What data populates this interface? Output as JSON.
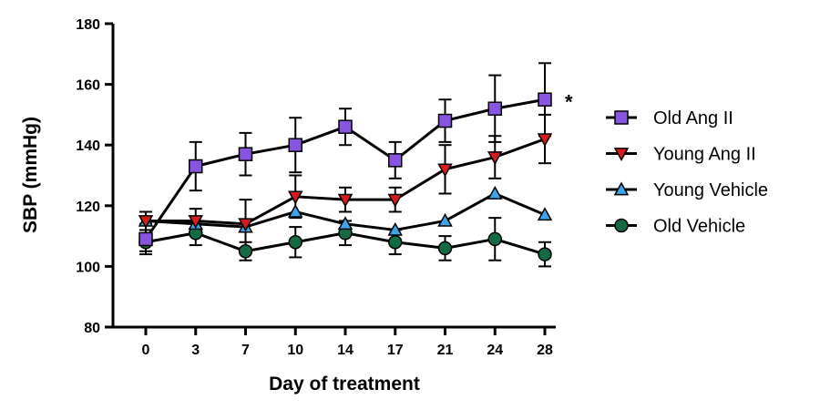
{
  "chart_data": {
    "type": "line",
    "title": "",
    "xlabel": "Day of treatment",
    "ylabel": "SBP (mmHg)",
    "categories": [
      "0",
      "3",
      "7",
      "10",
      "14",
      "17",
      "21",
      "24",
      "28"
    ],
    "ylim": [
      80,
      180
    ],
    "yticks": [
      80,
      100,
      120,
      140,
      160,
      180
    ],
    "ytick_labels": [
      "80",
      "100",
      "120",
      "140",
      "160",
      "180"
    ],
    "legend_position": "right",
    "series": [
      {
        "name": "Old Ang II",
        "marker": "square",
        "color": "#8855e0",
        "values": [
          109,
          133,
          137,
          140,
          146,
          135,
          148,
          152,
          155
        ],
        "errors": [
          5,
          8,
          7,
          9,
          6,
          6,
          7,
          11,
          12
        ]
      },
      {
        "name": "Young Ang II",
        "marker": "triangle-down",
        "color": "#d61c1c",
        "values": [
          115,
          115,
          114,
          123,
          122,
          122,
          132,
          136,
          142
        ],
        "errors": [
          3,
          4,
          8,
          7,
          4,
          4,
          8,
          7,
          8
        ]
      },
      {
        "name": "Young Vehicle",
        "marker": "triangle-up",
        "color": "#3fa4e8",
        "values": [
          115,
          114,
          113,
          118,
          114,
          112,
          115,
          124,
          117
        ]
      },
      {
        "name": "Old Vehicle",
        "marker": "circle",
        "color": "#136b44",
        "values": [
          108,
          111,
          105,
          108,
          111,
          108,
          106,
          109,
          104
        ],
        "errors": [
          3,
          4,
          3,
          5,
          4,
          4,
          4,
          7,
          4
        ]
      }
    ],
    "annotations": [
      {
        "text": "*",
        "series": "Old Ang II",
        "category": "28"
      }
    ]
  }
}
